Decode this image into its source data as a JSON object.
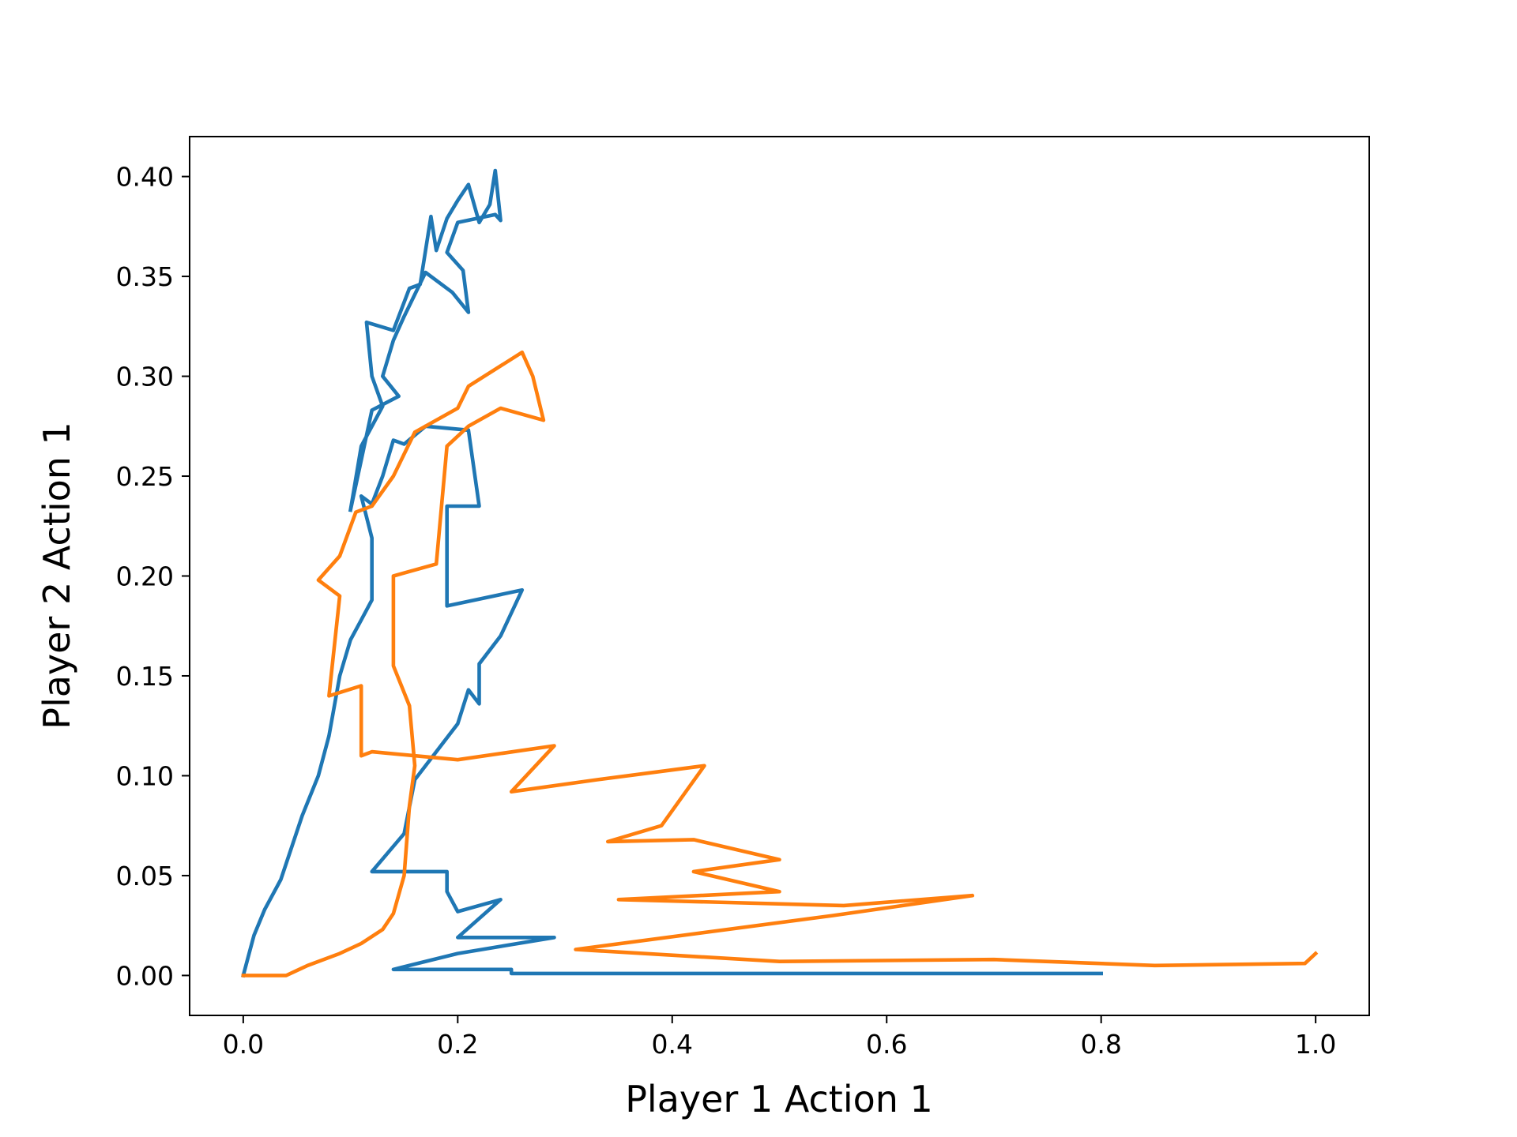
{
  "chart_data": {
    "type": "line",
    "title": "",
    "xlabel": "Player 1 Action 1",
    "ylabel": "Player 2 Action 1",
    "xlim": [
      -0.05,
      1.05
    ],
    "ylim": [
      -0.02,
      0.42
    ],
    "grid": false,
    "legend": "none",
    "x_ticks": [
      {
        "value": 0.0,
        "label": "0.0"
      },
      {
        "value": 0.2,
        "label": "0.2"
      },
      {
        "value": 0.4,
        "label": "0.4"
      },
      {
        "value": 0.6,
        "label": "0.6"
      },
      {
        "value": 0.8,
        "label": "0.8"
      },
      {
        "value": 1.0,
        "label": "1.0"
      }
    ],
    "y_ticks": [
      {
        "value": 0.0,
        "label": "0.00"
      },
      {
        "value": 0.05,
        "label": "0.05"
      },
      {
        "value": 0.1,
        "label": "0.10"
      },
      {
        "value": 0.15,
        "label": "0.15"
      },
      {
        "value": 0.2,
        "label": "0.20"
      },
      {
        "value": 0.25,
        "label": "0.25"
      },
      {
        "value": 0.3,
        "label": "0.30"
      },
      {
        "value": 0.35,
        "label": "0.35"
      },
      {
        "value": 0.4,
        "label": "0.40"
      }
    ],
    "series": [
      {
        "color": "#1f77b4",
        "points": [
          [
            0.8,
            0.001
          ],
          [
            0.6,
            0.001
          ],
          [
            0.4,
            0.001
          ],
          [
            0.25,
            0.001
          ],
          [
            0.25,
            0.003
          ],
          [
            0.14,
            0.003
          ],
          [
            0.2,
            0.011
          ],
          [
            0.29,
            0.019
          ],
          [
            0.2,
            0.019
          ],
          [
            0.24,
            0.038
          ],
          [
            0.2,
            0.032
          ],
          [
            0.19,
            0.042
          ],
          [
            0.19,
            0.052
          ],
          [
            0.12,
            0.052
          ],
          [
            0.15,
            0.071
          ],
          [
            0.16,
            0.098
          ],
          [
            0.2,
            0.126
          ],
          [
            0.21,
            0.143
          ],
          [
            0.22,
            0.136
          ],
          [
            0.22,
            0.156
          ],
          [
            0.24,
            0.17
          ],
          [
            0.26,
            0.193
          ],
          [
            0.19,
            0.185
          ],
          [
            0.19,
            0.235
          ],
          [
            0.22,
            0.235
          ],
          [
            0.21,
            0.273
          ],
          [
            0.17,
            0.275
          ],
          [
            0.15,
            0.266
          ],
          [
            0.14,
            0.268
          ],
          [
            0.13,
            0.25
          ],
          [
            0.12,
            0.236
          ],
          [
            0.11,
            0.24
          ],
          [
            0.12,
            0.219
          ],
          [
            0.12,
            0.188
          ],
          [
            0.11,
            0.178
          ],
          [
            0.1,
            0.168
          ],
          [
            0.09,
            0.15
          ],
          [
            0.08,
            0.12
          ],
          [
            0.07,
            0.1
          ],
          [
            0.055,
            0.08
          ],
          [
            0.035,
            0.048
          ],
          [
            0.02,
            0.033
          ],
          [
            0.01,
            0.02
          ],
          [
            0.005,
            0.01
          ],
          [
            0.0,
            0.0
          ]
        ],
        "points_upper": [
          [
            0.1,
            0.233
          ],
          [
            0.11,
            0.265
          ],
          [
            0.13,
            0.285
          ],
          [
            0.12,
            0.3
          ],
          [
            0.115,
            0.327
          ],
          [
            0.14,
            0.323
          ],
          [
            0.155,
            0.344
          ],
          [
            0.165,
            0.346
          ],
          [
            0.175,
            0.38
          ],
          [
            0.18,
            0.363
          ],
          [
            0.19,
            0.379
          ],
          [
            0.2,
            0.388
          ],
          [
            0.21,
            0.396
          ],
          [
            0.22,
            0.377
          ],
          [
            0.23,
            0.386
          ],
          [
            0.235,
            0.403
          ],
          [
            0.24,
            0.378
          ],
          [
            0.235,
            0.381
          ],
          [
            0.2,
            0.377
          ],
          [
            0.19,
            0.362
          ],
          [
            0.205,
            0.353
          ],
          [
            0.21,
            0.332
          ],
          [
            0.195,
            0.342
          ],
          [
            0.17,
            0.352
          ],
          [
            0.15,
            0.33
          ],
          [
            0.14,
            0.318
          ],
          [
            0.13,
            0.3
          ],
          [
            0.145,
            0.29
          ],
          [
            0.12,
            0.283
          ],
          [
            0.11,
            0.258
          ],
          [
            0.1,
            0.233
          ]
        ]
      },
      {
        "color": "#ff7f0e",
        "points": [
          [
            0.0,
            0.0
          ],
          [
            0.04,
            0.0
          ],
          [
            0.06,
            0.005
          ],
          [
            0.09,
            0.011
          ],
          [
            0.11,
            0.016
          ],
          [
            0.13,
            0.023
          ],
          [
            0.14,
            0.031
          ],
          [
            0.15,
            0.05
          ],
          [
            0.155,
            0.085
          ],
          [
            0.16,
            0.105
          ],
          [
            0.155,
            0.135
          ],
          [
            0.14,
            0.155
          ],
          [
            0.14,
            0.178
          ],
          [
            0.14,
            0.2
          ],
          [
            0.18,
            0.206
          ],
          [
            0.19,
            0.265
          ],
          [
            0.21,
            0.275
          ],
          [
            0.24,
            0.284
          ],
          [
            0.28,
            0.278
          ],
          [
            0.27,
            0.3
          ],
          [
            0.26,
            0.312
          ],
          [
            0.21,
            0.295
          ],
          [
            0.2,
            0.284
          ],
          [
            0.16,
            0.272
          ],
          [
            0.14,
            0.25
          ],
          [
            0.12,
            0.235
          ],
          [
            0.105,
            0.232
          ],
          [
            0.09,
            0.21
          ],
          [
            0.07,
            0.198
          ],
          [
            0.09,
            0.19
          ],
          [
            0.08,
            0.14
          ],
          [
            0.11,
            0.145
          ],
          [
            0.11,
            0.11
          ],
          [
            0.12,
            0.112
          ],
          [
            0.2,
            0.108
          ],
          [
            0.29,
            0.115
          ],
          [
            0.25,
            0.092
          ],
          [
            0.33,
            0.098
          ],
          [
            0.43,
            0.105
          ],
          [
            0.41,
            0.09
          ],
          [
            0.39,
            0.075
          ],
          [
            0.34,
            0.067
          ],
          [
            0.42,
            0.068
          ],
          [
            0.5,
            0.058
          ],
          [
            0.42,
            0.052
          ],
          [
            0.5,
            0.042
          ],
          [
            0.35,
            0.038
          ],
          [
            0.56,
            0.035
          ],
          [
            0.68,
            0.04
          ],
          [
            0.55,
            0.03
          ],
          [
            0.31,
            0.013
          ],
          [
            0.5,
            0.007
          ],
          [
            0.7,
            0.008
          ],
          [
            0.85,
            0.005
          ],
          [
            0.99,
            0.006
          ],
          [
            1.0,
            0.011
          ]
        ]
      }
    ]
  }
}
